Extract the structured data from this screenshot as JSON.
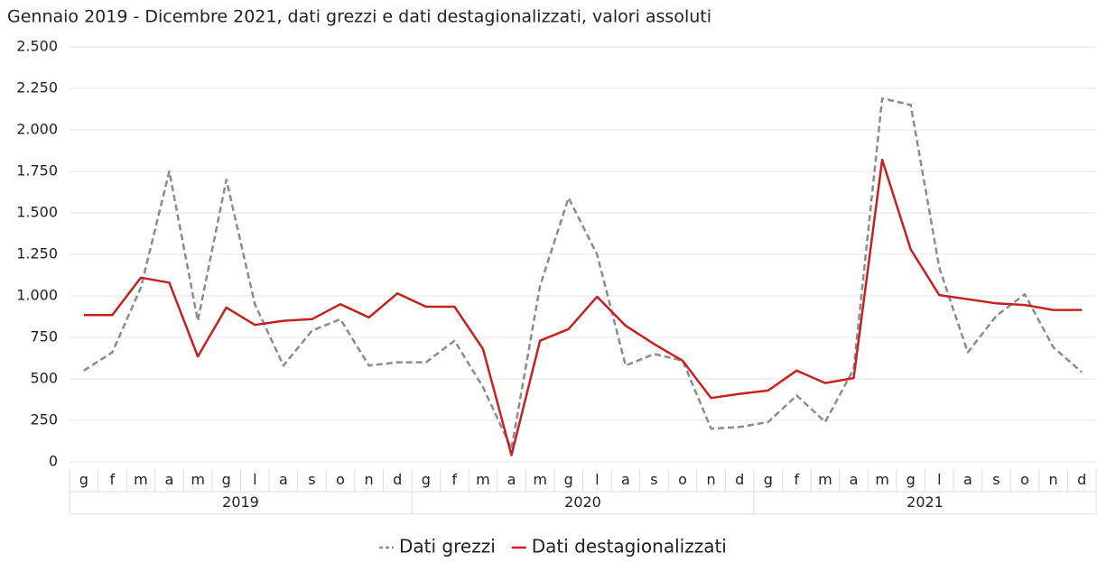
{
  "chart_data": {
    "type": "line",
    "title": "Gennaio 2019 - Dicembre 2021, dati grezzi e dati destagionalizzati, valori assoluti",
    "categories": [
      "g",
      "f",
      "m",
      "a",
      "m",
      "g",
      "l",
      "a",
      "s",
      "o",
      "n",
      "d",
      "g",
      "f",
      "m",
      "a",
      "m",
      "g",
      "l",
      "a",
      "s",
      "o",
      "n",
      "d",
      "g",
      "f",
      "m",
      "a",
      "m",
      "g",
      "l",
      "a",
      "s",
      "o",
      "n",
      "d"
    ],
    "year_groups": [
      "2019",
      "2020",
      "2021"
    ],
    "series": [
      {
        "name": "Dati grezzi",
        "color": "#8c8c8c",
        "dashed": true,
        "values": [
          550,
          660,
          1050,
          1750,
          850,
          1700,
          950,
          580,
          790,
          860,
          580,
          600,
          600,
          730,
          450,
          80,
          1060,
          1590,
          1250,
          580,
          650,
          610,
          200,
          210,
          240,
          400,
          240,
          560,
          2190,
          2150,
          1170,
          660,
          880,
          1010,
          690,
          540
        ]
      },
      {
        "name": "Dati destagionalizzati",
        "color": "#c8201e",
        "dashed": false,
        "values": [
          885,
          885,
          1110,
          1080,
          635,
          930,
          825,
          850,
          860,
          950,
          870,
          1015,
          935,
          935,
          680,
          40,
          730,
          800,
          995,
          820,
          710,
          610,
          385,
          410,
          430,
          550,
          475,
          505,
          1820,
          1280,
          1005,
          980,
          955,
          945,
          915,
          915
        ]
      }
    ],
    "ylim": [
      0,
      2500
    ],
    "yticks": [
      0,
      250,
      500,
      750,
      {
        "value": 1000,
        "label": "1.000"
      },
      {
        "value": 1250,
        "label": "1.250"
      },
      {
        "value": 1500,
        "label": "1.500"
      },
      {
        "value": 1750,
        "label": "1.750"
      },
      {
        "value": 2000,
        "label": "2.000"
      },
      {
        "value": 2250,
        "label": "2.250"
      },
      {
        "value": 2500,
        "label": "2.500"
      }
    ],
    "grid": true
  }
}
